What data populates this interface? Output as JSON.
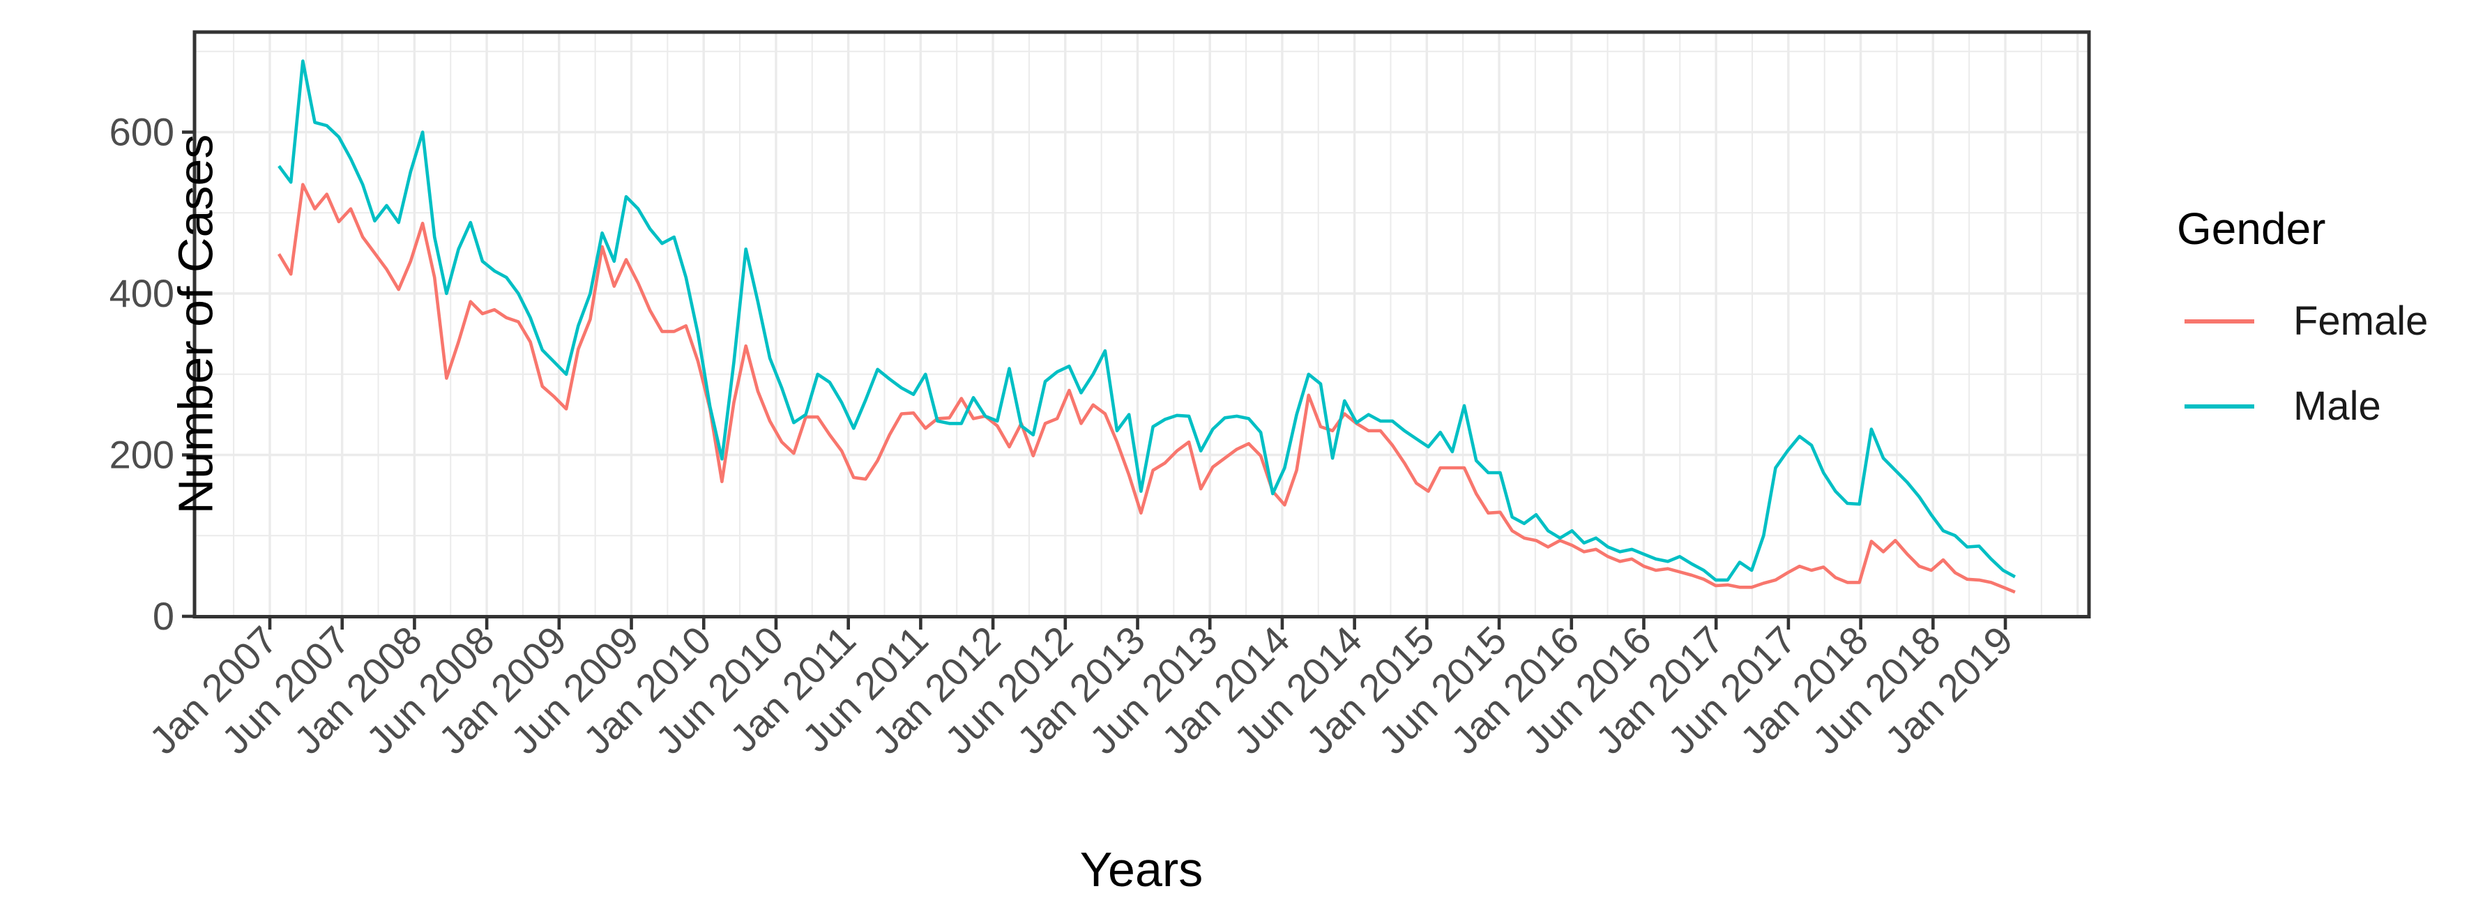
{
  "figure": {
    "background": "#FFFFFF",
    "panel_background": "#FFFFFF",
    "panel_border_color": "#333333",
    "grid_color": "#EBEBEB",
    "tick_color": "#333333",
    "tick_label_color": "#4D4D4D",
    "axis_title_color": "#000000"
  },
  "axes": {
    "x_title": "Years",
    "y_title": "Number of Cases",
    "y_tick_labels": [
      "0",
      "200",
      "400",
      "600"
    ],
    "y_tick_values": [
      0,
      200,
      400,
      600
    ],
    "x_tick_labels": [
      "Jan 2007",
      "Jun 2007",
      "Jan 2008",
      "Jun 2008",
      "Jan 2009",
      "Jun 2009",
      "Jan 2010",
      "Jun 2010",
      "Jan 2011",
      "Jun 2011",
      "Jan 2012",
      "Jun 2012",
      "Jan 2013",
      "Jun 2013",
      "Jan 2014",
      "Jun 2014",
      "Jan 2015",
      "Jun 2015",
      "Jan 2016",
      "Jun 2016",
      "Jan 2017",
      "Jun 2017",
      "Jan 2018",
      "Jun 2018",
      "Jan 2019"
    ]
  },
  "legend": {
    "title": "Gender",
    "items": [
      {
        "label": "Female",
        "color": "#F8766D"
      },
      {
        "label": "Male",
        "color": "#00BFC4"
      }
    ]
  },
  "chart_data": {
    "type": "line",
    "title": "",
    "xlabel": "Years",
    "ylabel": "Number of Cases",
    "x_start": "Jan 2007",
    "x_end": "Feb 2019",
    "x_interval": "monthly",
    "n_points": 146,
    "ylim": [
      0,
      728
    ],
    "y_major_gridlines": [
      0,
      200,
      400,
      600
    ],
    "y_minor_gridlines": [
      100,
      300,
      500,
      700
    ],
    "grid": "major+minor",
    "legend_position": "right",
    "series": [
      {
        "name": "Female",
        "color": "#F8766D",
        "values": [
          449,
          424,
          535,
          505,
          523,
          489,
          505,
          470,
          450,
          430,
          405,
          440,
          487,
          420,
          295,
          340,
          390,
          375,
          380,
          370,
          365,
          340,
          285,
          272,
          257,
          331,
          368,
          458,
          409,
          442,
          413,
          379,
          353,
          353,
          360,
          316,
          257,
          167,
          265,
          335,
          279,
          242,
          216,
          202,
          247,
          247,
          225,
          205,
          172,
          170,
          193,
          225,
          251,
          252,
          233,
          245,
          246,
          270,
          245,
          248,
          236,
          210,
          239,
          199,
          239,
          245,
          280,
          239,
          262,
          251,
          216,
          175,
          128,
          181,
          190,
          205,
          216,
          158,
          185,
          196,
          207,
          214,
          199,
          155,
          138,
          181,
          274,
          235,
          230,
          251,
          239,
          230,
          230,
          212,
          190,
          165,
          155,
          184,
          184,
          184,
          152,
          128,
          129,
          106,
          97,
          94,
          86,
          94,
          88,
          80,
          83,
          74,
          68,
          71,
          62,
          57,
          59,
          55,
          51,
          46,
          38,
          39,
          36,
          36,
          41,
          45,
          54,
          62,
          57,
          61,
          48,
          42,
          42,
          93,
          80,
          94,
          77,
          62,
          57,
          70,
          54,
          46,
          45,
          42,
          36,
          30
        ]
      },
      {
        "name": "Male",
        "color": "#00BFC4",
        "values": [
          558,
          538,
          688,
          612,
          608,
          594,
          567,
          535,
          490,
          509,
          488,
          551,
          600,
          470,
          400,
          455,
          488,
          440,
          428,
          420,
          400,
          370,
          330,
          315,
          300,
          360,
          400,
          475,
          440,
          520,
          505,
          480,
          462,
          470,
          420,
          350,
          260,
          195,
          315,
          455,
          390,
          320,
          283,
          240,
          250,
          300,
          290,
          265,
          233,
          268,
          306,
          294,
          283,
          275,
          300,
          242,
          239,
          239,
          271,
          248,
          242,
          307,
          236,
          225,
          291,
          303,
          310,
          277,
          300,
          329,
          230,
          250,
          155,
          235,
          244,
          249,
          248,
          205,
          232,
          246,
          248,
          245,
          228,
          152,
          184,
          250,
          300,
          288,
          196,
          267,
          240,
          250,
          242,
          242,
          230,
          220,
          210,
          228,
          204,
          261,
          193,
          178,
          178,
          123,
          115,
          126,
          106,
          97,
          106,
          91,
          97,
          86,
          80,
          83,
          77,
          71,
          68,
          74,
          65,
          57,
          45,
          45,
          67,
          57,
          100,
          184,
          205,
          223,
          212,
          178,
          155,
          140,
          139,
          232,
          196,
          181,
          166,
          148,
          126,
          106,
          100,
          86,
          87,
          71,
          57,
          49
        ]
      }
    ]
  }
}
